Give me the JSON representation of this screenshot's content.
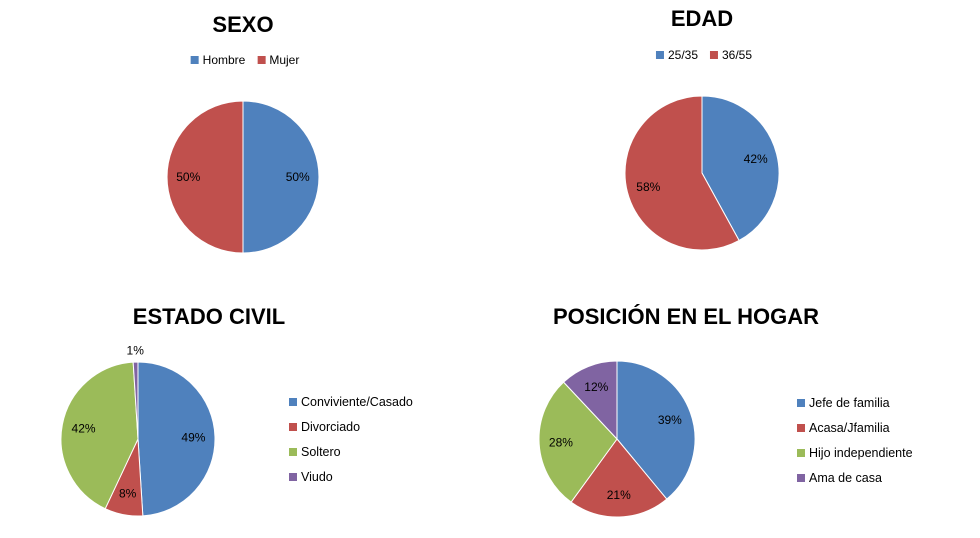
{
  "chart_data": [
    {
      "type": "pie",
      "title": "SEXO",
      "categories": [
        "Hombre",
        "Mujer"
      ],
      "values": [
        50,
        50
      ],
      "labels": [
        "50%",
        "50%"
      ],
      "colors": [
        "#4F81BD",
        "#C0504D"
      ],
      "legend": "top"
    },
    {
      "type": "pie",
      "title": "EDAD",
      "categories": [
        "25/35",
        "36/55"
      ],
      "values": [
        42,
        58
      ],
      "labels": [
        "42%",
        "58%"
      ],
      "colors": [
        "#4F81BD",
        "#C0504D"
      ],
      "legend": "top"
    },
    {
      "type": "pie",
      "title": "ESTADO CIVIL",
      "categories": [
        "Conviviente/Casado",
        "Divorciado",
        "Soltero",
        "Viudo"
      ],
      "values": [
        49,
        8,
        42,
        1
      ],
      "labels": [
        "49%",
        "8%",
        "42%",
        "1%"
      ],
      "colors": [
        "#4F81BD",
        "#C0504D",
        "#9BBB59",
        "#8064A2"
      ],
      "legend": "right"
    },
    {
      "type": "pie",
      "title": "POSICIÓN EN EL HOGAR",
      "categories": [
        "Jefe de familia",
        "Acasa/Jfamilia",
        "Hijo independiente",
        "Ama de casa"
      ],
      "values": [
        39,
        21,
        28,
        12
      ],
      "labels": [
        "39%",
        "21%",
        "28%",
        "12%"
      ],
      "colors": [
        "#4F81BD",
        "#C0504D",
        "#9BBB59",
        "#8064A2"
      ],
      "legend": "right"
    }
  ]
}
